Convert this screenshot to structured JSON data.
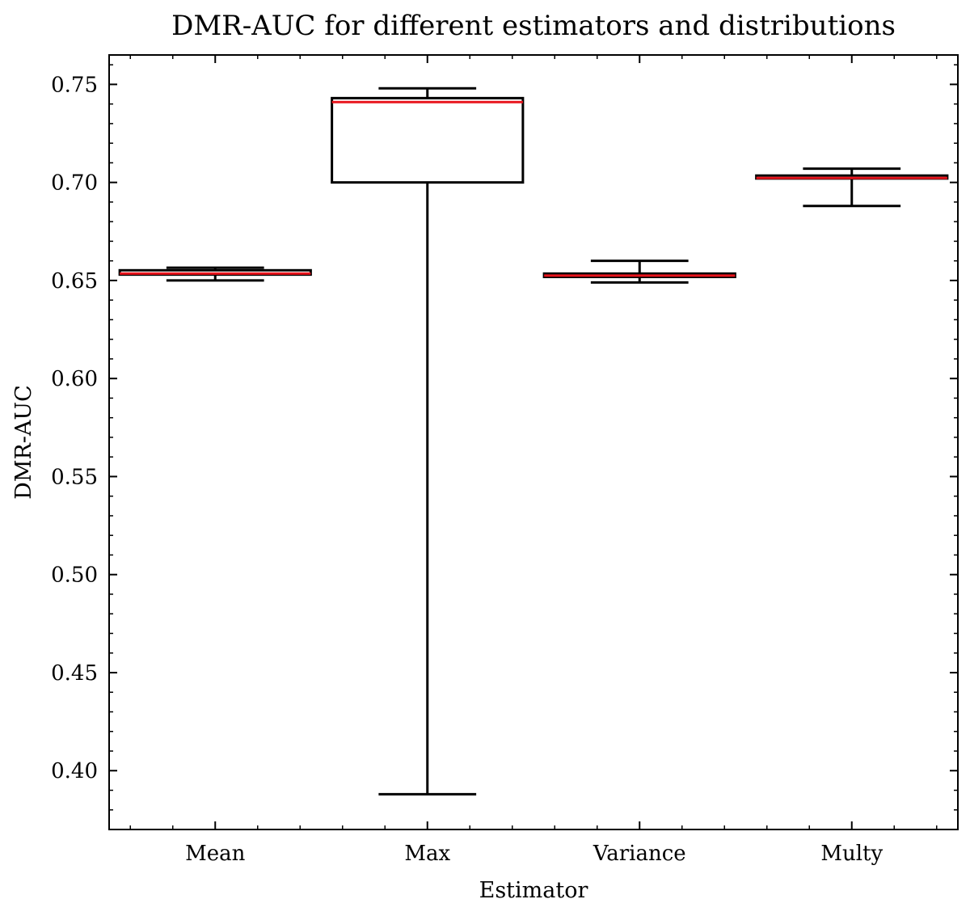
{
  "chart_data": {
    "type": "box",
    "title": "DMR-AUC for different estimators and distributions",
    "xlabel": "Estimator",
    "ylabel": "DMR-AUC",
    "ylim": [
      0.37,
      0.765
    ],
    "yticks": [
      "0.40",
      "0.45",
      "0.50",
      "0.55",
      "0.60",
      "0.65",
      "0.70",
      "0.75"
    ],
    "categories": [
      "Mean",
      "Max",
      "Variance",
      "Multy"
    ],
    "boxes": [
      {
        "label": "Mean",
        "whisker_low": 0.65,
        "q1": 0.653,
        "median": 0.6535,
        "q3": 0.6552,
        "whisker_high": 0.6565
      },
      {
        "label": "Max",
        "whisker_low": 0.388,
        "q1": 0.7,
        "median": 0.741,
        "q3": 0.743,
        "whisker_high": 0.748
      },
      {
        "label": "Variance",
        "whisker_low": 0.649,
        "q1": 0.6518,
        "median": 0.6525,
        "q3": 0.6535,
        "whisker_high": 0.66
      },
      {
        "label": "Multy",
        "whisker_low": 0.688,
        "q1": 0.702,
        "median": 0.7023,
        "q3": 0.7035,
        "whisker_high": 0.707
      }
    ],
    "box_color": "#000000",
    "median_color": "#e8141c",
    "grid": false,
    "legend": "none"
  }
}
